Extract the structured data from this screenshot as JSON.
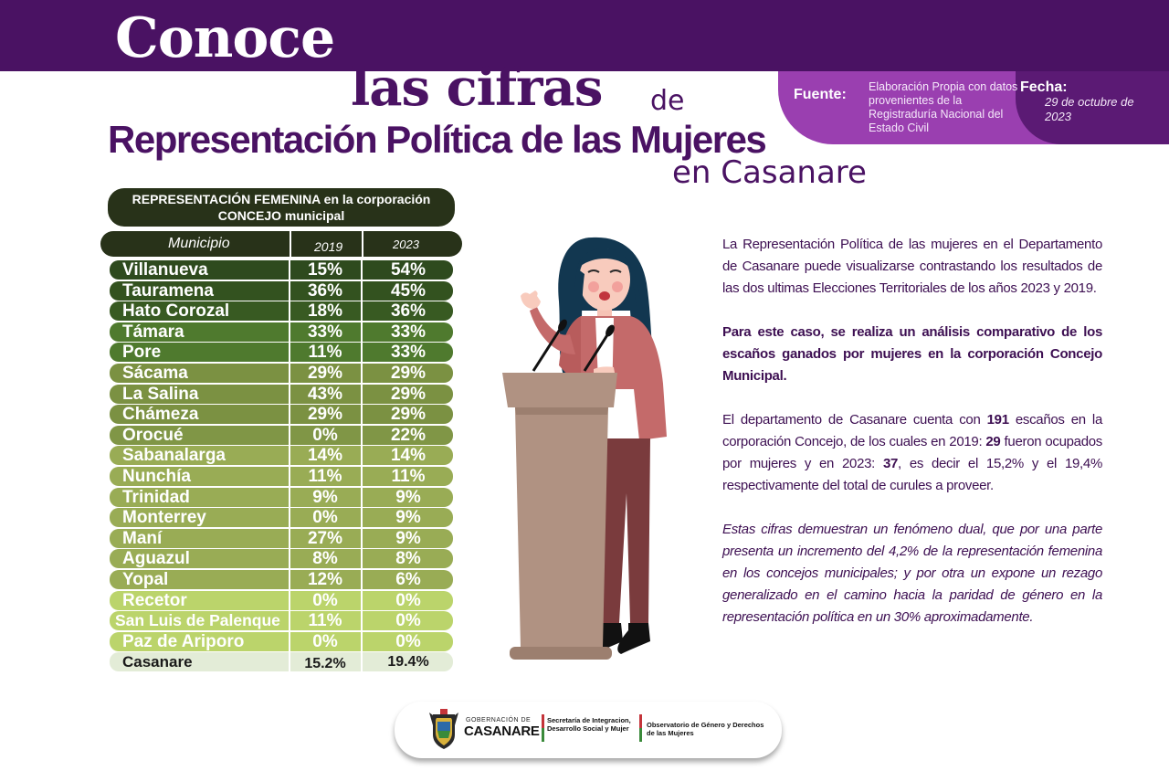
{
  "header": {
    "title_word1": "Conoce",
    "title_word2": "las cifras",
    "title_word3": "de",
    "title_main": "Representación Política de las Mujeres",
    "title_region": "en Casanare"
  },
  "source": {
    "label": "Fuente:",
    "text": "Elaboración Propia con datos provenientes de la Registraduría Nacional del Estado Civil",
    "date_label": "Fecha:",
    "date_value": "29 de octubre de 2023"
  },
  "table": {
    "title": "REPRESENTACIÓN FEMENINA en la corporación CONCEJO municipal",
    "col_municipio": "Municipio",
    "col_2019": "2019",
    "col_2023": "2023",
    "rows": [
      {
        "municipio": "Villanueva",
        "y2019": "15%",
        "y2023": "54%",
        "color": "#2e4a1e",
        "text": "#ffffff"
      },
      {
        "municipio": "Tauramena",
        "y2019": "36%",
        "y2023": "45%",
        "color": "#33521f",
        "text": "#ffffff"
      },
      {
        "municipio": "Hato Corozal",
        "y2019": "18%",
        "y2023": "36%",
        "color": "#385a22",
        "text": "#ffffff"
      },
      {
        "municipio": "Támara",
        "y2019": "33%",
        "y2023": "33%",
        "color": "#4f7a2e",
        "text": "#ffffff"
      },
      {
        "municipio": "Pore",
        "y2019": "11%",
        "y2023": "33%",
        "color": "#4f7a2e",
        "text": "#ffffff"
      },
      {
        "municipio": "Sácama",
        "y2019": "29%",
        "y2023": "29%",
        "color": "#7b9142",
        "text": "#ffffff"
      },
      {
        "municipio": "La Salina",
        "y2019": "43%",
        "y2023": "29%",
        "color": "#7b9142",
        "text": "#ffffff"
      },
      {
        "municipio": "Chámeza",
        "y2019": "29%",
        "y2023": "29%",
        "color": "#7b9142",
        "text": "#ffffff"
      },
      {
        "municipio": "Orocué",
        "y2019": "0%",
        "y2023": "22%",
        "color": "#809646",
        "text": "#ffffff"
      },
      {
        "municipio": "Sabanalarga",
        "y2019": "14%",
        "y2023": "14%",
        "color": "#99ac55",
        "text": "#ffffff"
      },
      {
        "municipio": "Nunchía",
        "y2019": "11%",
        "y2023": "11%",
        "color": "#99ac55",
        "text": "#ffffff"
      },
      {
        "municipio": "Trinidad",
        "y2019": "9%",
        "y2023": "9%",
        "color": "#99ac55",
        "text": "#ffffff"
      },
      {
        "municipio": "Monterrey",
        "y2019": "0%",
        "y2023": "9%",
        "color": "#99ac55",
        "text": "#ffffff"
      },
      {
        "municipio": "Maní",
        "y2019": "27%",
        "y2023": "9%",
        "color": "#99ac55",
        "text": "#ffffff"
      },
      {
        "municipio": "Aguazul",
        "y2019": "8%",
        "y2023": "8%",
        "color": "#99ac55",
        "text": "#ffffff"
      },
      {
        "municipio": "Yopal",
        "y2019": "12%",
        "y2023": "6%",
        "color": "#99ac55",
        "text": "#ffffff"
      },
      {
        "municipio": "Recetor",
        "y2019": "0%",
        "y2023": "0%",
        "color": "#bbd46b",
        "text": "#ffffff"
      },
      {
        "municipio": "San Luis de Palenque",
        "y2019": "11%",
        "y2023": "0%",
        "color": "#bbd46b",
        "text": "#ffffff"
      },
      {
        "municipio": "Paz de Ariporo",
        "y2019": "0%",
        "y2023": "0%",
        "color": "#bbd46b",
        "text": "#ffffff"
      },
      {
        "municipio": "Casanare",
        "y2019": "15.2%",
        "y2023": "19.4%",
        "color": "#e3ecd7",
        "text": "#1a1a1a"
      }
    ]
  },
  "text": {
    "p1": "La Representación Política de las mujeres en el Departamento de Casanare puede visualizarse contrastando los resultados de las dos ultimas Elecciones Territoriales de los años 2023 y 2019.",
    "p2": "Para este caso, se realiza un análisis comparativo de los escaños ganados por mujeres en la corporación Concejo Municipal.",
    "p3_a": "El departamento de Casanare cuenta con ",
    "p3_n1": "191",
    "p3_b": " escaños en la corporación Concejo, de los cuales en 2019: ",
    "p3_n2": "29",
    "p3_c": "  fueron ocupados por mujeres y en 2023: ",
    "p3_n3": "37",
    "p3_d": ", es decir el 15,2% y el 19,4% respectivamente del total de curules a proveer.",
    "p4": "Estas cifras demuestran un fenómeno dual, que por una parte presenta un incremento del 4,2% de la representación femenina en los concejos municipales; y por otra un expone un rezago generalizado en el camino hacia la paridad de género en la representación política en un 30% aproximadamente."
  },
  "footer": {
    "gob_small": "GOBERNACIÓN DE",
    "gob_big": "CASANARE",
    "secretaria": "Secretaría de Integracion, Desarrollo Social y Mujer",
    "observatorio": "Observatorio de Género y Derechos de las Mujeres"
  },
  "icons": {
    "illustration": "woman-at-podium-illustration",
    "crest": "casanare-crest-icon"
  },
  "colors": {
    "brand_purple": "#4a1263",
    "accent_purple": "#9a3fb0",
    "table_dark": "#283219"
  }
}
